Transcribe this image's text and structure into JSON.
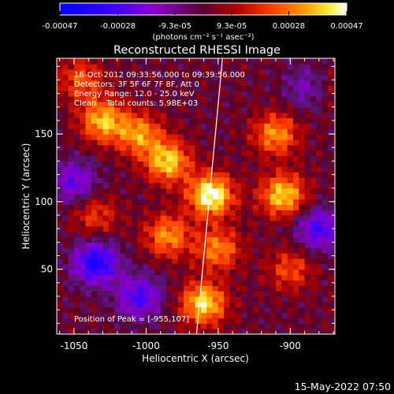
{
  "colorbar": {
    "tick_labels": [
      "-0.00047",
      "-0.00028",
      "-9.3e-05",
      "9.3e-05",
      "0.00028",
      "0.00047"
    ],
    "tick_values": [
      -0.00047,
      -0.00028,
      -9.3e-05,
      9.3e-05,
      0.00028,
      0.00047
    ],
    "range": [
      -0.00047,
      0.00047
    ],
    "units_label": "(photons cm⁻² s⁻¹ asec⁻²)"
  },
  "chart_data": {
    "type": "heatmap",
    "title": "Reconstructed RHESSI Image",
    "xlabel": "Heliocentric X (arcsec)",
    "ylabel": "Heliocentric Y (arcsec)",
    "xlim": [
      -1062,
      -869
    ],
    "ylim": [
      2,
      206
    ],
    "x_ticks": [
      -1050,
      -1000,
      -950,
      -900
    ],
    "x_tick_labels": [
      "-1050",
      "-1000",
      "-950",
      "-900"
    ],
    "y_ticks": [
      50,
      100,
      150
    ],
    "y_tick_labels": [
      "50",
      "100",
      "150"
    ],
    "colormap": "blue-purple-red-yellow-white",
    "limb_line": [
      [
        -965,
        2
      ],
      [
        -947,
        206
      ]
    ],
    "bright_sources": [
      {
        "x": -1030,
        "y": 160,
        "z": 0.00035
      },
      {
        "x": -1005,
        "y": 150,
        "z": 0.0003
      },
      {
        "x": -985,
        "y": 130,
        "z": 0.00038
      },
      {
        "x": -955,
        "y": 105,
        "z": 0.00047
      },
      {
        "x": -985,
        "y": 75,
        "z": 0.0003
      },
      {
        "x": -950,
        "y": 65,
        "z": 0.00028
      },
      {
        "x": -960,
        "y": 25,
        "z": 0.0004
      },
      {
        "x": -905,
        "y": 105,
        "z": 0.00038
      },
      {
        "x": -910,
        "y": 150,
        "z": 0.0003
      },
      {
        "x": -880,
        "y": 185,
        "z": 0.00025
      },
      {
        "x": -1035,
        "y": 90,
        "z": 0.00018
      },
      {
        "x": -900,
        "y": 50,
        "z": 0.0002
      },
      {
        "x": -1045,
        "y": 190,
        "z": 0.00022
      }
    ],
    "dark_sources": [
      {
        "x": -1035,
        "y": 55,
        "z": -0.0004
      },
      {
        "x": -1005,
        "y": 30,
        "z": -0.0003
      },
      {
        "x": -885,
        "y": 185,
        "z": -0.00035
      },
      {
        "x": -880,
        "y": 80,
        "z": -0.0003
      },
      {
        "x": -1050,
        "y": 115,
        "z": -0.00025
      }
    ]
  },
  "info": {
    "line1": "16-Oct-2012 09:33:56.000 to 09:39:56.000",
    "line2": "Detectors: 3F 5F 6F 7F 8F, Att 0",
    "line3": "Energy Range: 12.0 - 25.0 keV",
    "line4": "Clean    Total counts: 5.98E+03",
    "peak": "Position of Peak = [-955,107]"
  },
  "footer": {
    "timestamp": "15-May-2022 07:50"
  }
}
